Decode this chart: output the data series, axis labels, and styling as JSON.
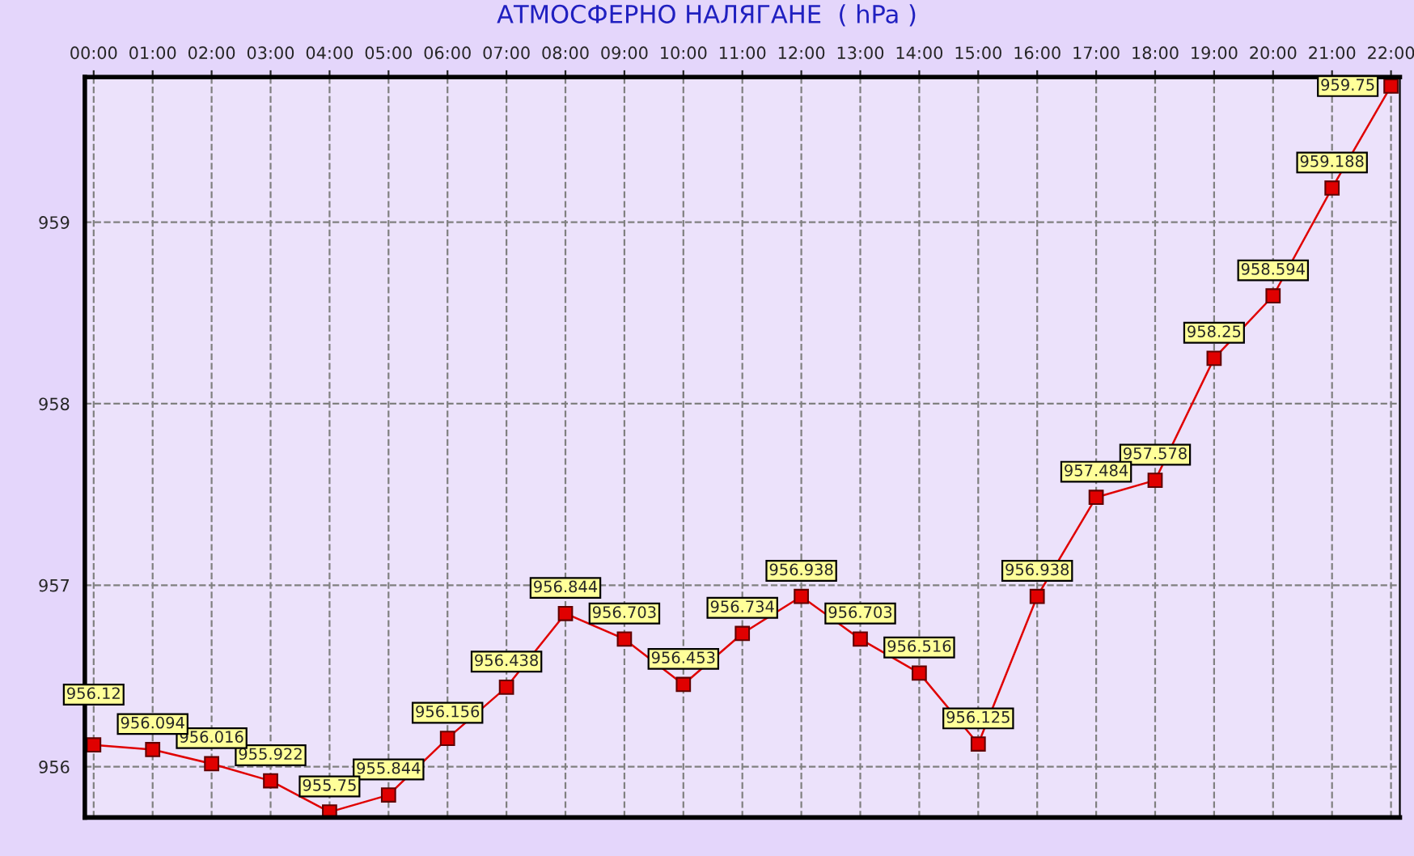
{
  "chart_data": {
    "type": "line",
    "title": "АТМОСФЕРНО НАЛЯГАНЕ  ( hPa )",
    "categories": [
      "00:00",
      "01:00",
      "02:00",
      "03:00",
      "04:00",
      "05:00",
      "06:00",
      "07:00",
      "08:00",
      "09:00",
      "10:00",
      "11:00",
      "12:00",
      "13:00",
      "14:00",
      "15:00",
      "16:00",
      "17:00",
      "18:00",
      "19:00",
      "20:00",
      "21:00",
      "22:00"
    ],
    "series": [
      {
        "color": "#e00000",
        "values": [
          956.12,
          956.094,
          956.016,
          955.922,
          955.75,
          955.844,
          956.156,
          956.438,
          956.844,
          956.703,
          956.453,
          956.734,
          956.938,
          956.703,
          956.516,
          956.125,
          956.938,
          957.484,
          957.578,
          958.25,
          958.594,
          959.188,
          959.75
        ]
      }
    ],
    "ylim": [
      955.72,
      959.8
    ],
    "yticks": [
      956,
      957,
      958,
      959
    ],
    "grid": true,
    "marker": "square",
    "line_style": "solid",
    "data_labels": true,
    "legend": false
  }
}
